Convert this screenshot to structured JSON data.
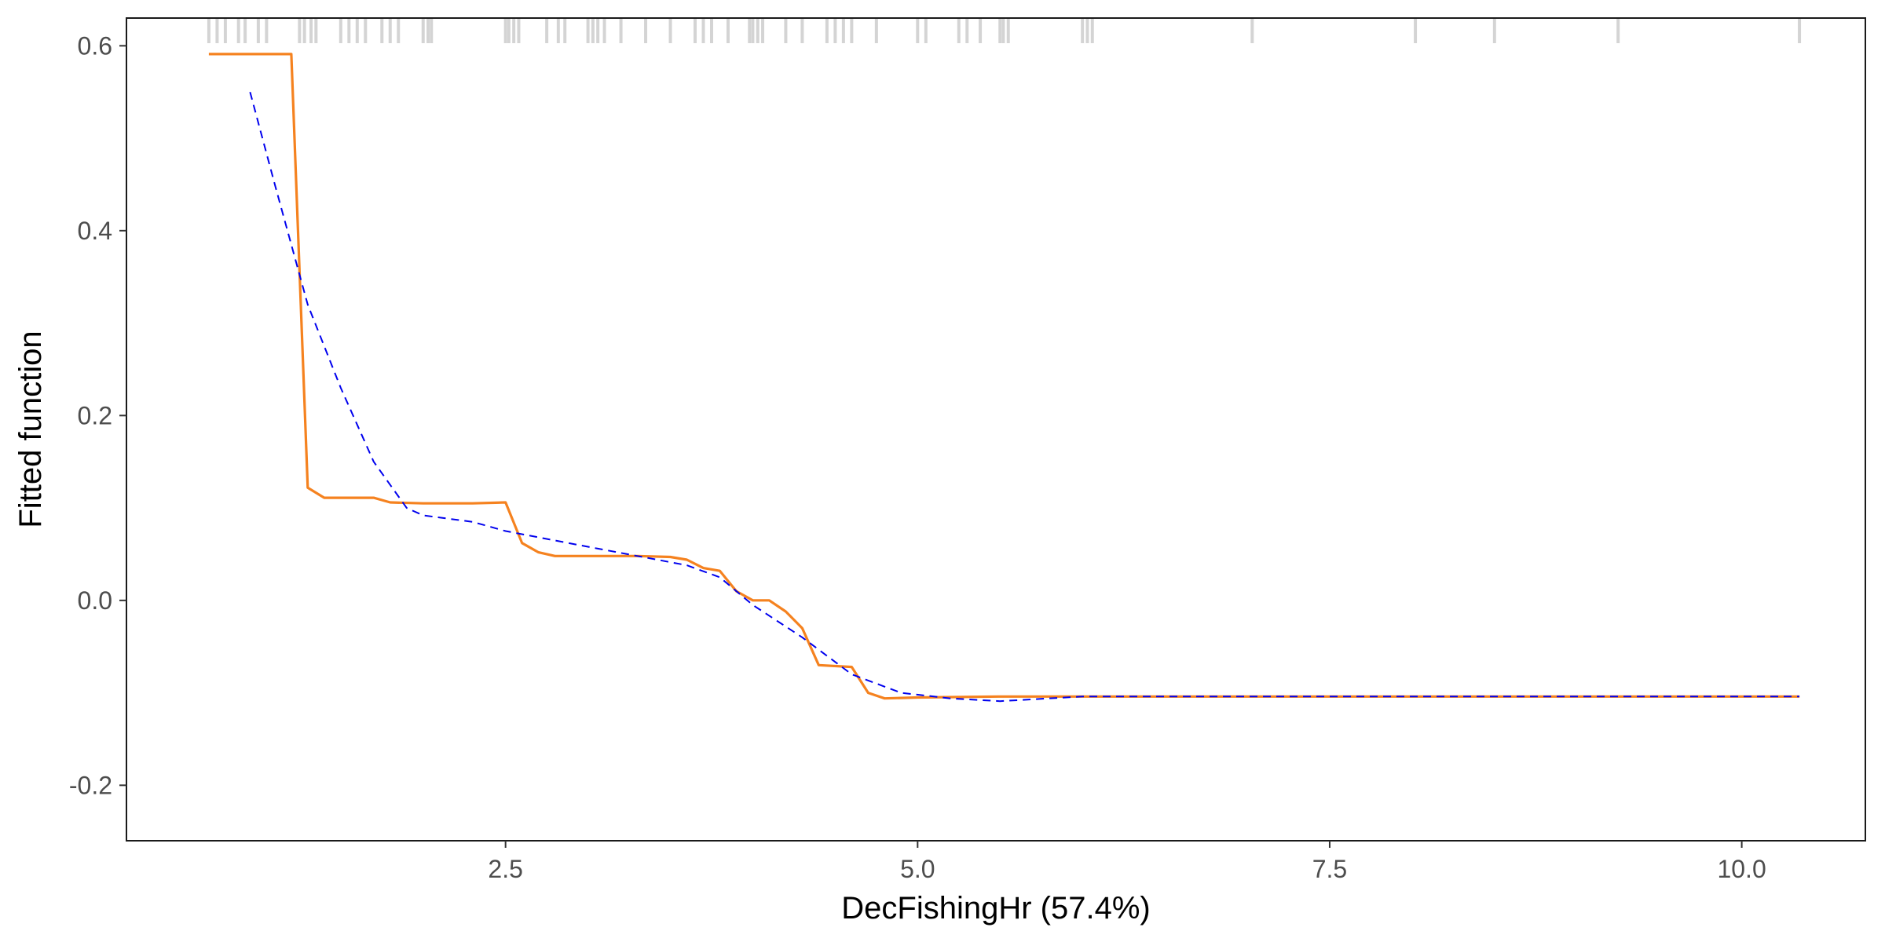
{
  "chart_data": {
    "type": "line",
    "title": "",
    "xlabel": "DecFishingHr  (57.4%)",
    "ylabel": "Fitted function",
    "xlim": [
      0.2,
      10.75
    ],
    "ylim": [
      -0.26,
      0.63
    ],
    "x_ticks": [
      {
        "value": 2.5,
        "label": "2.5"
      },
      {
        "value": 5.0,
        "label": "5.0"
      },
      {
        "value": 7.5,
        "label": "7.5"
      },
      {
        "value": 10.0,
        "label": "10.0"
      }
    ],
    "y_ticks": [
      {
        "value": 0.6,
        "label": "0.6"
      },
      {
        "value": 0.4,
        "label": "0.4"
      },
      {
        "value": 0.2,
        "label": "0.2"
      },
      {
        "value": 0.0,
        "label": "0.0"
      },
      {
        "value": -0.2,
        "label": "-0.2"
      }
    ],
    "grid": false,
    "legend": "none",
    "series": [
      {
        "style": "solid",
        "color": "#f5821f",
        "x": [
          0.7,
          1.2,
          1.3,
          1.4,
          1.7,
          1.8,
          2.0,
          2.3,
          2.5,
          2.6,
          2.7,
          2.8,
          3.0,
          3.3,
          3.5,
          3.6,
          3.7,
          3.8,
          3.9,
          4.0,
          4.1,
          4.2,
          4.3,
          4.4,
          4.6,
          4.7,
          4.8,
          5.0,
          5.5,
          10.35
        ],
        "y": [
          0.591,
          0.591,
          0.122,
          0.111,
          0.111,
          0.106,
          0.105,
          0.105,
          0.106,
          0.062,
          0.052,
          0.048,
          0.048,
          0.048,
          0.047,
          0.044,
          0.035,
          0.032,
          0.01,
          0.0,
          0.0,
          -0.012,
          -0.03,
          -0.07,
          -0.072,
          -0.1,
          -0.106,
          -0.105,
          -0.104,
          -0.104
        ]
      },
      {
        "style": "dashed",
        "color": "#0000ee",
        "x": [
          0.95,
          1.1,
          1.3,
          1.5,
          1.7,
          1.9,
          2.0,
          2.3,
          2.5,
          3.0,
          3.3,
          3.6,
          3.8,
          4.0,
          4.3,
          4.6,
          4.9,
          5.2,
          5.5,
          6.0,
          10.35
        ],
        "y": [
          0.55,
          0.45,
          0.32,
          0.23,
          0.15,
          0.1,
          0.092,
          0.085,
          0.075,
          0.058,
          0.048,
          0.038,
          0.025,
          -0.005,
          -0.04,
          -0.08,
          -0.1,
          -0.106,
          -0.109,
          -0.104,
          -0.104
        ]
      }
    ],
    "rug_x": [
      0.7,
      0.75,
      0.8,
      0.88,
      0.92,
      1.0,
      1.05,
      1.25,
      1.28,
      1.32,
      1.35,
      1.5,
      1.55,
      1.6,
      1.65,
      1.75,
      1.8,
      1.85,
      2.0,
      2.03,
      2.05,
      2.5,
      2.52,
      2.55,
      2.58,
      2.75,
      2.82,
      2.86,
      3.0,
      3.03,
      3.06,
      3.1,
      3.2,
      3.35,
      3.5,
      3.65,
      3.7,
      3.75,
      3.85,
      3.98,
      4.0,
      4.03,
      4.06,
      4.2,
      4.3,
      4.45,
      4.5,
      4.55,
      4.6,
      4.75,
      5.0,
      5.05,
      5.25,
      5.3,
      5.38,
      5.5,
      5.52,
      5.55,
      6.0,
      6.03,
      6.06,
      7.03,
      8.02,
      8.5,
      9.25,
      10.35
    ]
  }
}
